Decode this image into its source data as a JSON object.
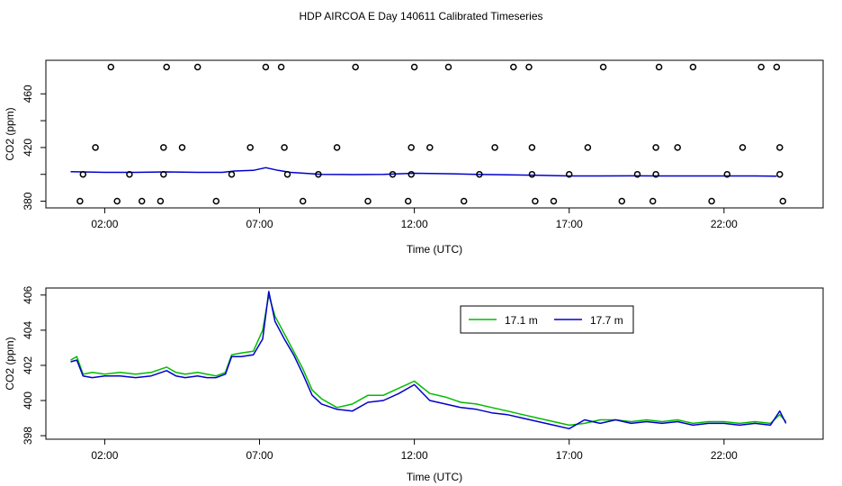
{
  "title": "HDP AIRCOA E  Day 140611  Calibrated Timeseries",
  "chart_data": [
    {
      "type": "scatter",
      "xlabel": "Time (UTC)",
      "ylabel": "CO2 (ppm)",
      "x_ticks": [
        2,
        7,
        12,
        17,
        22
      ],
      "x_tick_labels": [
        "02:00",
        "07:00",
        "12:00",
        "17:00",
        "22:00"
      ],
      "xlim": [
        0.1,
        25.2
      ],
      "y_ticks": [
        380,
        400,
        420,
        440,
        460
      ],
      "y_tick_labels": [
        "380",
        "",
        "420",
        "",
        "460"
      ],
      "ylim": [
        375,
        485
      ],
      "points": {
        "x": [
          1.2,
          1.3,
          1.7,
          2.2,
          2.4,
          2.8,
          3.2,
          3.8,
          3.9,
          3.9,
          4.0,
          4.5,
          5.0,
          5.6,
          6.1,
          6.7,
          7.2,
          7.7,
          7.8,
          7.9,
          8.4,
          8.9,
          9.5,
          10.1,
          10.5,
          11.3,
          11.8,
          11.9,
          11.9,
          12.0,
          12.5,
          13.1,
          13.6,
          14.1,
          14.6,
          15.2,
          15.7,
          15.8,
          15.8,
          15.9,
          16.5,
          17.0,
          17.6,
          18.1,
          18.7,
          19.2,
          19.7,
          19.8,
          19.8,
          19.9,
          20.5,
          21.0,
          21.6,
          22.1,
          22.6,
          23.2,
          23.7,
          23.8,
          23.8,
          23.9
        ],
        "y": [
          380,
          400,
          420,
          480,
          380,
          400,
          380,
          380,
          400,
          420,
          480,
          420,
          480,
          380,
          400,
          420,
          480,
          480,
          420,
          400,
          380,
          400,
          420,
          480,
          380,
          400,
          380,
          400,
          420,
          480,
          420,
          480,
          380,
          400,
          420,
          480,
          480,
          420,
          400,
          380,
          380,
          400,
          420,
          480,
          380,
          400,
          380,
          400,
          420,
          480,
          420,
          480,
          380,
          400,
          420,
          480,
          480,
          420,
          400,
          380
        ]
      },
      "series": [
        {
          "color": "#0000cc",
          "x": [
            0.9,
            2,
            3,
            4,
            5,
            5.8,
            6.2,
            6.8,
            7.2,
            7.6,
            8,
            9,
            10,
            11,
            12,
            13,
            14,
            15,
            16,
            17,
            18,
            19,
            20,
            21,
            22,
            23,
            23.7
          ],
          "y": [
            402,
            401.5,
            401.5,
            401.8,
            401.5,
            401.5,
            402.5,
            403,
            405,
            403,
            401.5,
            400,
            399.8,
            400,
            400.8,
            400.5,
            400,
            399.6,
            399.3,
            398.8,
            398.8,
            398.9,
            398.8,
            398.8,
            398.8,
            398.8,
            398.6
          ]
        }
      ]
    },
    {
      "type": "line",
      "xlabel": "Time (UTC)",
      "ylabel": "CO2 (ppm)",
      "x_ticks": [
        2,
        7,
        12,
        17,
        22
      ],
      "x_tick_labels": [
        "02:00",
        "07:00",
        "12:00",
        "17:00",
        "22:00"
      ],
      "xlim": [
        0.1,
        25.2
      ],
      "y_ticks": [
        398,
        400,
        402,
        404,
        406
      ],
      "y_tick_labels": [
        "398",
        "400",
        "402",
        "404",
        "406"
      ],
      "ylim": [
        397.8,
        406.4
      ],
      "legend": "top-center",
      "series": [
        {
          "name": "17.1 m",
          "color": "#00bb00",
          "x": [
            0.9,
            1.1,
            1.3,
            1.6,
            2.0,
            2.5,
            3.0,
            3.5,
            4.0,
            4.3,
            4.6,
            5.0,
            5.3,
            5.6,
            5.9,
            6.1,
            6.4,
            6.8,
            7.1,
            7.3,
            7.5,
            7.8,
            8.1,
            8.4,
            8.7,
            9.0,
            9.5,
            10.0,
            10.5,
            11.0,
            11.5,
            12.0,
            12.5,
            13.0,
            13.5,
            14.0,
            14.5,
            15.0,
            15.5,
            16.0,
            16.5,
            17.0,
            17.5,
            18.0,
            18.5,
            19.0,
            19.5,
            20.0,
            20.5,
            21.0,
            21.5,
            22.0,
            22.5,
            23.0,
            23.5,
            23.8,
            24.0
          ],
          "y": [
            402.3,
            402.5,
            401.5,
            401.6,
            401.5,
            401.6,
            401.5,
            401.6,
            401.9,
            401.6,
            401.5,
            401.6,
            401.5,
            401.4,
            401.6,
            402.6,
            402.7,
            402.8,
            404.0,
            406.0,
            404.8,
            403.8,
            402.8,
            401.8,
            400.6,
            400.1,
            399.6,
            399.8,
            400.3,
            400.3,
            400.7,
            401.1,
            400.4,
            400.2,
            399.9,
            399.8,
            399.6,
            399.4,
            399.2,
            399.0,
            398.8,
            398.6,
            398.7,
            398.9,
            398.9,
            398.8,
            398.9,
            398.8,
            398.9,
            398.7,
            398.8,
            398.8,
            398.7,
            398.8,
            398.7,
            399.2,
            398.8
          ]
        },
        {
          "name": "17.7 m",
          "color": "#0000cc",
          "x": [
            0.9,
            1.1,
            1.3,
            1.6,
            2.0,
            2.5,
            3.0,
            3.5,
            4.0,
            4.3,
            4.6,
            5.0,
            5.3,
            5.6,
            5.9,
            6.1,
            6.4,
            6.8,
            7.1,
            7.3,
            7.5,
            7.8,
            8.1,
            8.4,
            8.7,
            9.0,
            9.5,
            10.0,
            10.5,
            11.0,
            11.5,
            12.0,
            12.5,
            13.0,
            13.5,
            14.0,
            14.5,
            15.0,
            15.5,
            16.0,
            16.5,
            17.0,
            17.5,
            18.0,
            18.5,
            19.0,
            19.5,
            20.0,
            20.5,
            21.0,
            21.5,
            22.0,
            22.5,
            23.0,
            23.5,
            23.8,
            24.0
          ],
          "y": [
            402.2,
            402.3,
            401.4,
            401.3,
            401.4,
            401.4,
            401.3,
            401.4,
            401.7,
            401.4,
            401.3,
            401.4,
            401.3,
            401.3,
            401.5,
            402.5,
            402.5,
            402.6,
            403.5,
            406.2,
            404.5,
            403.5,
            402.6,
            401.5,
            400.3,
            399.8,
            399.5,
            399.4,
            399.9,
            400.0,
            400.4,
            400.9,
            400.0,
            399.8,
            399.6,
            399.5,
            399.3,
            399.2,
            399.0,
            398.8,
            398.6,
            398.4,
            398.9,
            398.7,
            398.9,
            398.7,
            398.8,
            398.7,
            398.8,
            398.6,
            398.7,
            398.7,
            398.6,
            398.7,
            398.6,
            399.4,
            398.7
          ]
        }
      ]
    }
  ]
}
